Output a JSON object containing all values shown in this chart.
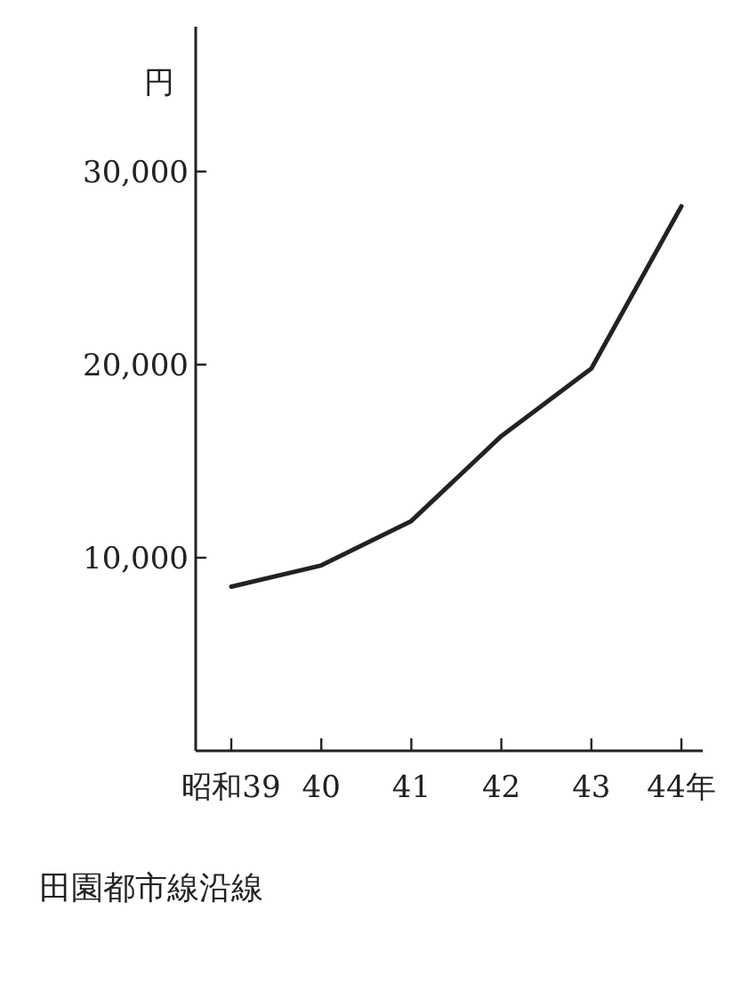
{
  "chart_data": {
    "type": "line",
    "ylabel": "円",
    "categories": [
      "昭和39",
      "40",
      "41",
      "42",
      "43",
      "44年"
    ],
    "series": [
      {
        "color": "#222222",
        "values": [
          8500,
          9600,
          11900,
          16300,
          19800,
          28200
        ]
      }
    ],
    "ylim": [
      0,
      37500
    ],
    "yticks": [
      {
        "value": 10000,
        "label": "10,000"
      },
      {
        "value": 20000,
        "label": "20,000"
      },
      {
        "value": 30000,
        "label": "30,000"
      }
    ],
    "grid": false,
    "marker": "none",
    "line_style": "solid",
    "annotations": [
      "田園都市線沿線"
    ]
  }
}
